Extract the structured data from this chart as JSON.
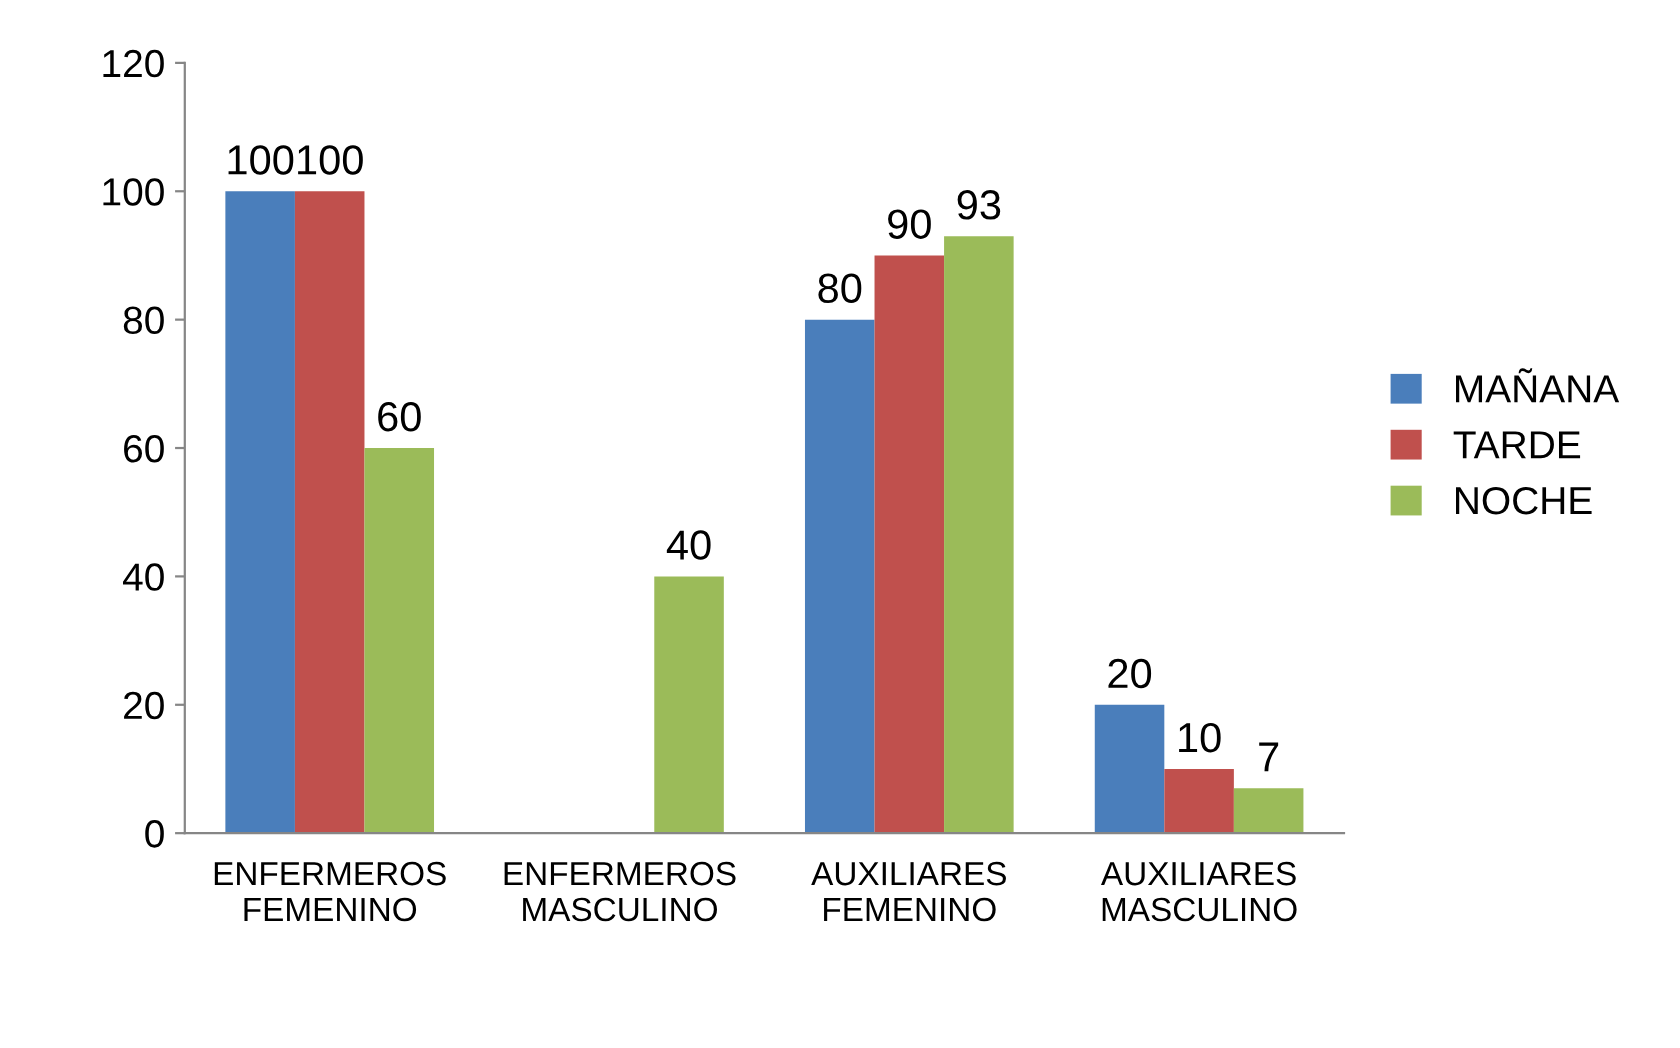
{
  "chart_data": {
    "type": "bar",
    "categories": [
      "ENFERMEROS\nFEMENINO",
      "ENFERMEROS\nMASCULINO",
      "AUXILIARES\nFEMENINO",
      "AUXILIARES\nMASCULINO"
    ],
    "series": [
      {
        "name": "MAÑANA",
        "color": "#4a7ebb",
        "values": [
          100,
          0,
          80,
          20
        ],
        "value_labels": [
          "100",
          null,
          "80",
          "20"
        ]
      },
      {
        "name": "TARDE",
        "color": "#c0504d",
        "values": [
          100,
          0,
          90,
          10
        ],
        "value_labels": [
          "100",
          null,
          "90",
          "10"
        ]
      },
      {
        "name": "NOCHE",
        "color": "#9bbb59",
        "values": [
          60,
          40,
          93,
          7
        ],
        "value_labels": [
          "60",
          "40",
          "93",
          "7"
        ]
      }
    ],
    "ylim": [
      0,
      120
    ],
    "yticks": [
      0,
      20,
      40,
      60,
      80,
      100,
      120
    ],
    "grid": false,
    "legend": "right"
  }
}
